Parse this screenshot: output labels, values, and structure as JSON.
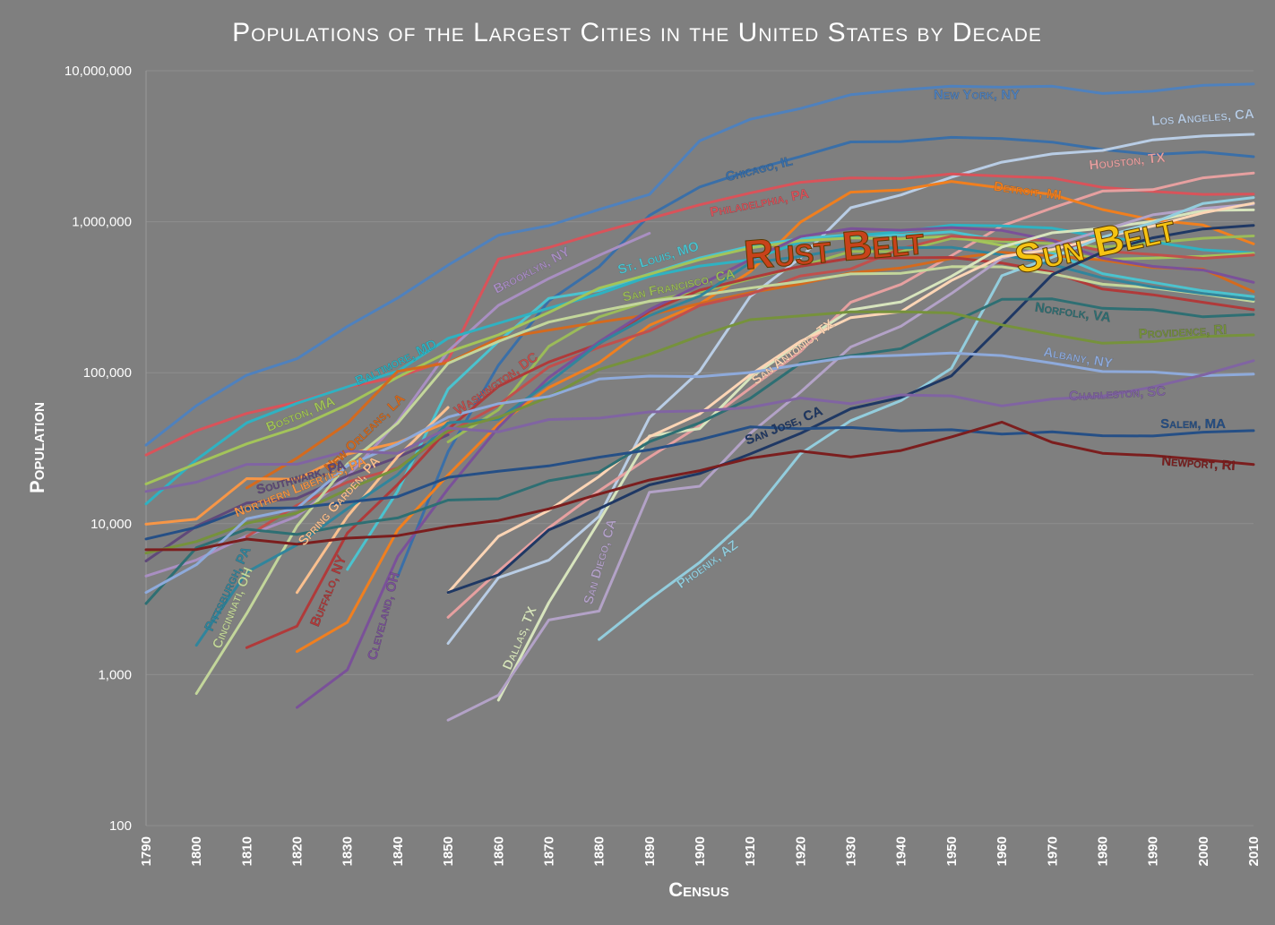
{
  "chart_data": {
    "type": "line",
    "title": "Populations of the Largest Cities in the United States by Decade",
    "xlabel": "Census",
    "ylabel": "Population",
    "yscale": "log",
    "ylim": [
      100,
      10000000
    ],
    "y_ticks": [
      {
        "value": 100,
        "label": "100"
      },
      {
        "value": 1000,
        "label": "1,000"
      },
      {
        "value": 10000,
        "label": "10,000"
      },
      {
        "value": 100000,
        "label": "100,000"
      },
      {
        "value": 1000000,
        "label": "1,000,000"
      },
      {
        "value": 10000000,
        "label": "10,000,000"
      }
    ],
    "categories": [
      "1790",
      "1800",
      "1810",
      "1820",
      "1830",
      "1840",
      "1850",
      "1860",
      "1870",
      "1880",
      "1890",
      "1900",
      "1910",
      "1920",
      "1930",
      "1940",
      "1950",
      "1960",
      "1970",
      "1980",
      "1990",
      "2000",
      "2010"
    ],
    "annotations": [
      {
        "text": "Rust Belt",
        "color": "#c8421a"
      },
      {
        "text": "Sun Belt",
        "color": "#f5c312"
      }
    ],
    "series": [
      {
        "name": "New York, NY",
        "label": "New York, NY",
        "color": "#4f81bd",
        "values": [
          33131,
          60515,
          96373,
          123706,
          202589,
          312710,
          515547,
          813669,
          942292,
          1206299,
          1515301,
          3437202,
          4766883,
          5620048,
          6930446,
          7454995,
          7891957,
          7781984,
          7894862,
          7071639,
          7322564,
          8008278,
          8175133
        ]
      },
      {
        "name": "Chicago, IL",
        "label": "Chicago, IL",
        "color": "#3a6fa8",
        "values": [
          null,
          null,
          null,
          null,
          null,
          4470,
          29963,
          112172,
          298977,
          503185,
          1099850,
          1698575,
          2185283,
          2701705,
          3376438,
          3396808,
          3620962,
          3550404,
          3366957,
          3005072,
          2783726,
          2896016,
          2695598
        ]
      },
      {
        "name": "Los Angeles, CA",
        "label": "Los Angeles, CA",
        "color": "#b9cde5",
        "values": [
          null,
          null,
          null,
          null,
          null,
          null,
          1610,
          4385,
          5728,
          11183,
          50395,
          102479,
          319198,
          576673,
          1238048,
          1504277,
          1970358,
          2479015,
          2811801,
          2966850,
          3485398,
          3694820,
          3792621
        ]
      },
      {
        "name": "Philadelphia, PA",
        "label": "Philadelphia, PA",
        "color": "#d9535a",
        "values": [
          28522,
          41220,
          53722,
          63802,
          80462,
          93665,
          121376,
          565529,
          674022,
          847170,
          1046964,
          1293697,
          1549008,
          1823779,
          1950961,
          1931334,
          2071605,
          2002512,
          1948609,
          1688210,
          1585577,
          1517550,
          1526006
        ]
      },
      {
        "name": "Houston, TX",
        "label": "Houston, TX",
        "color": "#e6a0a0",
        "values": [
          null,
          null,
          null,
          null,
          null,
          null,
          2396,
          4845,
          9382,
          16513,
          27557,
          44633,
          78800,
          138276,
          292352,
          384514,
          596163,
          938219,
          1232802,
          1595138,
          1630553,
          1953631,
          2099451
        ]
      },
      {
        "name": "Detroit, MI",
        "label": "Detroit, MI",
        "color": "#f07f1f",
        "values": [
          null,
          null,
          null,
          1422,
          2222,
          9102,
          21019,
          45619,
          79577,
          116340,
          205876,
          285704,
          465766,
          993678,
          1568662,
          1623452,
          1849568,
          1670144,
          1514063,
          1203339,
          1027974,
          951270,
          713777
        ]
      },
      {
        "name": "Brooklyn, NY",
        "label": "Brooklyn, NY",
        "color": "#a98fc2",
        "values": [
          4495,
          5740,
          8303,
          11187,
          20535,
          47613,
          138882,
          279122,
          419921,
          599495,
          838547,
          null,
          null,
          null,
          null,
          null,
          null,
          null,
          null,
          null,
          null,
          null,
          null
        ]
      },
      {
        "name": "St. Louis, MO",
        "label": "St. Louis, MO",
        "color": "#4bc3cf",
        "values": [
          null,
          null,
          null,
          null,
          4977,
          16469,
          77860,
          160773,
          310864,
          350518,
          451770,
          575238,
          687029,
          772897,
          821960,
          816048,
          856796,
          750026,
          622236,
          453085,
          396685,
          348189,
          319294
        ]
      },
      {
        "name": "San Francisco, CA",
        "label": "San Francisco, CA",
        "color": "#9bbb59",
        "values": [
          null,
          null,
          null,
          null,
          null,
          null,
          34776,
          56802,
          149473,
          233959,
          298997,
          342782,
          416912,
          506676,
          634394,
          634536,
          775357,
          740316,
          715674,
          678974,
          723959,
          776733,
          805235
        ]
      },
      {
        "name": "Baltimore, MD",
        "label": "Baltimore, MD",
        "color": "#2fb2c2",
        "values": [
          13503,
          26514,
          46555,
          62738,
          80620,
          102313,
          169054,
          212418,
          267354,
          332313,
          434439,
          508957,
          558485,
          733826,
          804874,
          859100,
          949708,
          939024,
          905759,
          786775,
          736014,
          651154,
          620961
        ]
      },
      {
        "name": "Boston, MA",
        "label": "Boston, MA",
        "color": "#a3c45a",
        "values": [
          18320,
          24937,
          33787,
          43298,
          61392,
          93383,
          136881,
          177840,
          250526,
          362839,
          448477,
          560892,
          670585,
          748060,
          781188,
          770816,
          801444,
          697197,
          641071,
          562994,
          574283,
          589141,
          617594
        ]
      },
      {
        "name": "New Orleans, LA",
        "label": "New Orleans, LA",
        "color": "#d46a1e",
        "values": [
          null,
          null,
          17242,
          27176,
          46082,
          102193,
          116375,
          168675,
          191418,
          216090,
          242039,
          287104,
          339075,
          387219,
          458762,
          494537,
          570445,
          627525,
          593471,
          557515,
          496938,
          484674,
          343829
        ]
      },
      {
        "name": "Washington, DC",
        "label": "Washington, DC",
        "color": "#c0504d",
        "values": [
          null,
          null,
          8208,
          13247,
          18826,
          23364,
          40001,
          61122,
          109199,
          147293,
          188932,
          278718,
          331069,
          437571,
          486869,
          663091,
          802178,
          763956,
          756510,
          638333,
          606900,
          572059,
          601723
        ]
      },
      {
        "name": "Northern Liberties, PA",
        "label": "Northern Liberties, PA",
        "color": "#f79646",
        "values": [
          9913,
          10718,
          19874,
          19678,
          28872,
          34474,
          47223,
          null,
          null,
          null,
          null,
          null,
          null,
          null,
          null,
          null,
          null,
          null,
          null,
          null,
          null,
          null,
          null
        ]
      },
      {
        "name": "Southwark, PA",
        "label": "Southwark, PA",
        "color": "#60497a",
        "values": [
          5661,
          9621,
          13707,
          14713,
          20740,
          27548,
          38799,
          null,
          null,
          null,
          null,
          null,
          null,
          null,
          null,
          null,
          null,
          null,
          null,
          null,
          null,
          null,
          null
        ]
      },
      {
        "name": "Spring Garden, PA",
        "label": "Spring Garden, PA",
        "color": "#fac08f",
        "values": [
          null,
          null,
          null,
          3498,
          11141,
          27849,
          58894,
          null,
          null,
          null,
          null,
          null,
          null,
          null,
          null,
          null,
          null,
          null,
          null,
          null,
          null,
          null,
          null
        ]
      },
      {
        "name": "Buffalo, NY",
        "label": "Buffalo, NY",
        "color": "#b03a3a",
        "values": [
          null,
          null,
          1508,
          2095,
          8668,
          18213,
          42261,
          81129,
          117714,
          155134,
          255664,
          352387,
          423715,
          506775,
          573076,
          575901,
          580132,
          532759,
          462768,
          357870,
          328123,
          292648,
          261310
        ]
      },
      {
        "name": "Cleveland, OH",
        "label": "Cleveland, OH",
        "color": "#7a5199",
        "values": [
          null,
          null,
          null,
          606,
          1076,
          6071,
          17034,
          43417,
          92829,
          160146,
          261353,
          381768,
          560663,
          796841,
          900429,
          878336,
          914808,
          876050,
          750903,
          573822,
          505616,
          478403,
          396815
        ]
      },
      {
        "name": "Cincinnati, OH",
        "label": "Cincinnati, OH",
        "color": "#c3d69b",
        "values": [
          null,
          750,
          2540,
          9642,
          24831,
          46338,
          115435,
          161044,
          216239,
          255139,
          296908,
          325902,
          363591,
          401247,
          451160,
          455610,
          503998,
          502550,
          452524,
          385457,
          364040,
          331285,
          296943
        ]
      },
      {
        "name": "Pittsburgh, PA",
        "label": "Pittsburgh, PA",
        "color": "#31859c",
        "values": [
          null,
          1565,
          4768,
          7248,
          12568,
          21115,
          46601,
          49221,
          86076,
          156389,
          238617,
          321616,
          533905,
          588343,
          669817,
          671659,
          676806,
          604332,
          520117,
          423938,
          369879,
          334563,
          305704
        ]
      },
      {
        "name": "Dallas, TX",
        "label": "Dallas, TX",
        "color": "#d7e4bd",
        "values": [
          null,
          null,
          null,
          null,
          null,
          null,
          null,
          678,
          3000,
          10358,
          38067,
          42638,
          92104,
          158976,
          260475,
          294734,
          434462,
          679684,
          844401,
          904078,
          1006877,
          1188580,
          1197816
        ]
      },
      {
        "name": "San Diego, CA",
        "label": "San Diego, CA",
        "color": "#b3a2c7",
        "values": [
          null,
          null,
          null,
          null,
          null,
          null,
          500,
          731,
          2300,
          2637,
          16159,
          17700,
          39578,
          74361,
          147995,
          203341,
          334387,
          573224,
          696769,
          875538,
          1110549,
          1223400,
          1307402
        ]
      },
      {
        "name": "San Antonio, TX",
        "label": "San Antonio, TX",
        "color": "#fcd5b5",
        "values": [
          null,
          null,
          null,
          null,
          null,
          null,
          3488,
          8235,
          12256,
          20550,
          37673,
          53321,
          96614,
          161379,
          231542,
          253854,
          408442,
          587718,
          654153,
          785940,
          935933,
          1144646,
          1327407
        ]
      },
      {
        "name": "Phoenix, AZ",
        "label": "Phoenix, AZ",
        "color": "#93cddd",
        "values": [
          null,
          null,
          null,
          null,
          null,
          null,
          null,
          null,
          null,
          1708,
          3152,
          5544,
          11134,
          29053,
          48118,
          65414,
          106818,
          439170,
          581562,
          789704,
          983403,
          1321045,
          1445632
        ]
      },
      {
        "name": "San Jose, CA",
        "label": "San Jose, CA",
        "color": "#1f3864",
        "values": [
          null,
          null,
          null,
          null,
          null,
          null,
          3500,
          4579,
          9089,
          12567,
          18060,
          21500,
          28946,
          39642,
          57651,
          68457,
          95280,
          204196,
          445779,
          629400,
          782248,
          894943,
          945942
        ]
      },
      {
        "name": "Norfolk, VA",
        "label": "Norfolk, VA",
        "color": "#2e6f73",
        "values": [
          2959,
          6926,
          9193,
          8478,
          9814,
          10920,
          14326,
          14620,
          19229,
          21966,
          34871,
          46624,
          67452,
          115777,
          129710,
          144332,
          213513,
          305872,
          307951,
          266979,
          261229,
          234403,
          242803
        ]
      },
      {
        "name": "Providence, RI",
        "label": "Providence, RI",
        "color": "#76923c",
        "values": [
          6380,
          7614,
          10071,
          11767,
          16836,
          23171,
          41513,
          50666,
          68904,
          104857,
          132146,
          175597,
          224326,
          237595,
          252981,
          253504,
          248674,
          207498,
          179213,
          156804,
          160728,
          173618,
          178042
        ]
      },
      {
        "name": "Albany, NY",
        "label": "Albany, NY",
        "color": "#8eaadb",
        "values": [
          3498,
          5349,
          10762,
          12630,
          24209,
          33721,
          50763,
          62367,
          69422,
          90758,
          94923,
          94151,
          100253,
          113344,
          127412,
          130577,
          134995,
          129726,
          115781,
          101727,
          101082,
          95658,
          97856
        ]
      },
      {
        "name": "Charleston, SC",
        "label": "Charleston, SC",
        "color": "#8064a2",
        "values": [
          16359,
          18824,
          24711,
          24780,
          30289,
          29261,
          42985,
          40522,
          48956,
          49984,
          54955,
          55807,
          58833,
          67957,
          62265,
          71275,
          70174,
          60288,
          66945,
          69779,
          80414,
          96650,
          120083
        ]
      },
      {
        "name": "Salem, MA",
        "label": "Salem, MA",
        "color": "#254f86",
        "values": [
          7921,
          9457,
          12613,
          12731,
          13895,
          15082,
          20264,
          22252,
          24117,
          27563,
          30801,
          35956,
          43697,
          42529,
          43353,
          41213,
          41880,
          39211,
          40556,
          38220,
          38091,
          40407,
          41340
        ]
      },
      {
        "name": "Newport, RI",
        "label": "Newport, RI",
        "color": "#7b1e1e",
        "values": [
          6716,
          6739,
          7907,
          7319,
          8010,
          8333,
          9563,
          10508,
          12521,
          15693,
          19457,
          22441,
          27149,
          30255,
          27612,
          30532,
          37564,
          47049,
          34562,
          29259,
          28227,
          26475,
          24672
        ]
      }
    ]
  }
}
